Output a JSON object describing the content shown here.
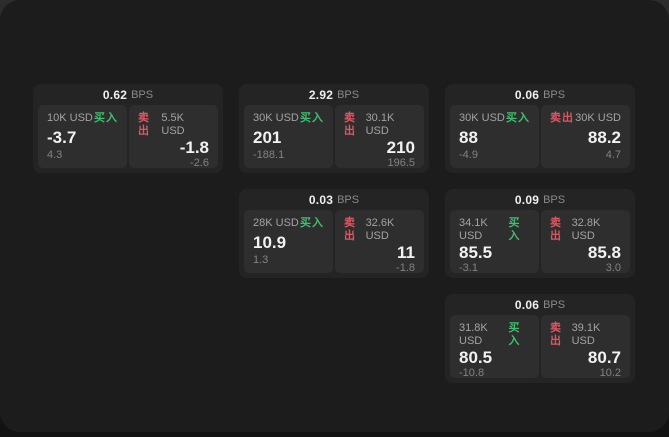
{
  "labels": {
    "buy": "买入",
    "sell": "卖出",
    "bps_unit": "BPS"
  },
  "colors": {
    "buy_accent": "#3fbf6f",
    "sell_accent": "#e15562",
    "panel_bg": "#1c1c1c",
    "card_bg": "#242424",
    "cell_bg": "#2e2e2e",
    "primary_text": "#f2f2f2",
    "muted_text": "#828282"
  },
  "cards": [
    {
      "bps": "0.62",
      "buy": {
        "amount": "10K USD",
        "value": "-3.7",
        "sub": "4.3"
      },
      "sell": {
        "amount": "5.5K USD",
        "value": "-1.8",
        "sub": "-2.6"
      }
    },
    {
      "bps": "2.92",
      "buy": {
        "amount": "30K USD",
        "value": "201",
        "sub": "-188.1"
      },
      "sell": {
        "amount": "30.1K USD",
        "value": "210",
        "sub": "196.5"
      }
    },
    {
      "bps": "0.06",
      "buy": {
        "amount": "30K USD",
        "value": "88",
        "sub": "-4.9"
      },
      "sell": {
        "amount": "30K USD",
        "value": "88.2",
        "sub": "4.7"
      }
    },
    {
      "bps": "0.03",
      "buy": {
        "amount": "28K USD",
        "value": "10.9",
        "sub": "1.3"
      },
      "sell": {
        "amount": "32.6K USD",
        "value": "11",
        "sub": "-1.8"
      }
    },
    {
      "bps": "0.09",
      "buy": {
        "amount": "34.1K USD",
        "value": "85.5",
        "sub": "-3.1"
      },
      "sell": {
        "amount": "32.8K USD",
        "value": "85.8",
        "sub": "3.0"
      }
    },
    {
      "bps": "0.06",
      "buy": {
        "amount": "31.8K USD",
        "value": "80.5",
        "sub": "-10.8"
      },
      "sell": {
        "amount": "39.1K USD",
        "value": "80.7",
        "sub": "10.2"
      }
    }
  ]
}
